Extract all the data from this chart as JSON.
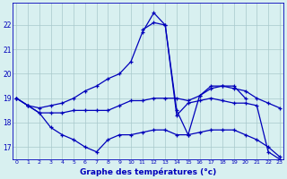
{
  "title": "Graphe des températures (°c)",
  "bg_color": "#d8f0f0",
  "line_color": "#0000bb",
  "grid_color": "#a8c8cc",
  "x_ticks": [
    0,
    1,
    2,
    3,
    4,
    5,
    6,
    7,
    8,
    9,
    10,
    11,
    12,
    13,
    14,
    15,
    16,
    17,
    18,
    19,
    20,
    21,
    22,
    23
  ],
  "xlim": [
    -0.3,
    23.3
  ],
  "ylim": [
    16.5,
    22.9
  ],
  "y_ticks": [
    17,
    18,
    19,
    20,
    21,
    22
  ],
  "series": [
    {
      "x": [
        0,
        1,
        2,
        3,
        4,
        5,
        6,
        7,
        8,
        9,
        10,
        11,
        12,
        13,
        14,
        15,
        16,
        17,
        18,
        19,
        20,
        21,
        22,
        23
      ],
      "y": [
        19.0,
        18.7,
        18.6,
        18.7,
        18.8,
        19.0,
        19.3,
        19.5,
        19.8,
        20.0,
        20.5,
        21.7,
        22.5,
        22.0,
        18.3,
        18.8,
        18.9,
        19.0,
        18.9,
        18.8,
        18.8,
        18.7,
        16.8,
        16.5
      ]
    },
    {
      "x": [
        11,
        12,
        13,
        14,
        15,
        16,
        17,
        18,
        19,
        20
      ],
      "y": [
        21.8,
        22.1,
        22.0,
        18.5,
        17.5,
        19.1,
        19.5,
        19.5,
        19.5,
        19.0
      ]
    },
    {
      "x": [
        0,
        1,
        2,
        3,
        4,
        5,
        6,
        7,
        8,
        9,
        10,
        11,
        12,
        13,
        14,
        15,
        16,
        17,
        18,
        19,
        20,
        21,
        22,
        23
      ],
      "y": [
        19.0,
        18.7,
        18.4,
        18.4,
        18.4,
        18.5,
        18.5,
        18.5,
        18.5,
        18.7,
        18.9,
        18.9,
        19.0,
        19.0,
        19.0,
        18.9,
        19.1,
        19.4,
        19.5,
        19.4,
        19.3,
        19.0,
        18.8,
        18.6
      ]
    },
    {
      "x": [
        0,
        1,
        2,
        3,
        4,
        5,
        6,
        7,
        8,
        9,
        10,
        11,
        12,
        13,
        14,
        15,
        16,
        17,
        18,
        19,
        20,
        21,
        22,
        23
      ],
      "y": [
        19.0,
        18.7,
        18.4,
        17.8,
        17.5,
        17.3,
        17.0,
        16.8,
        17.3,
        17.5,
        17.5,
        17.6,
        17.7,
        17.7,
        17.5,
        17.5,
        17.6,
        17.7,
        17.7,
        17.7,
        17.5,
        17.3,
        17.0,
        16.6
      ]
    }
  ]
}
